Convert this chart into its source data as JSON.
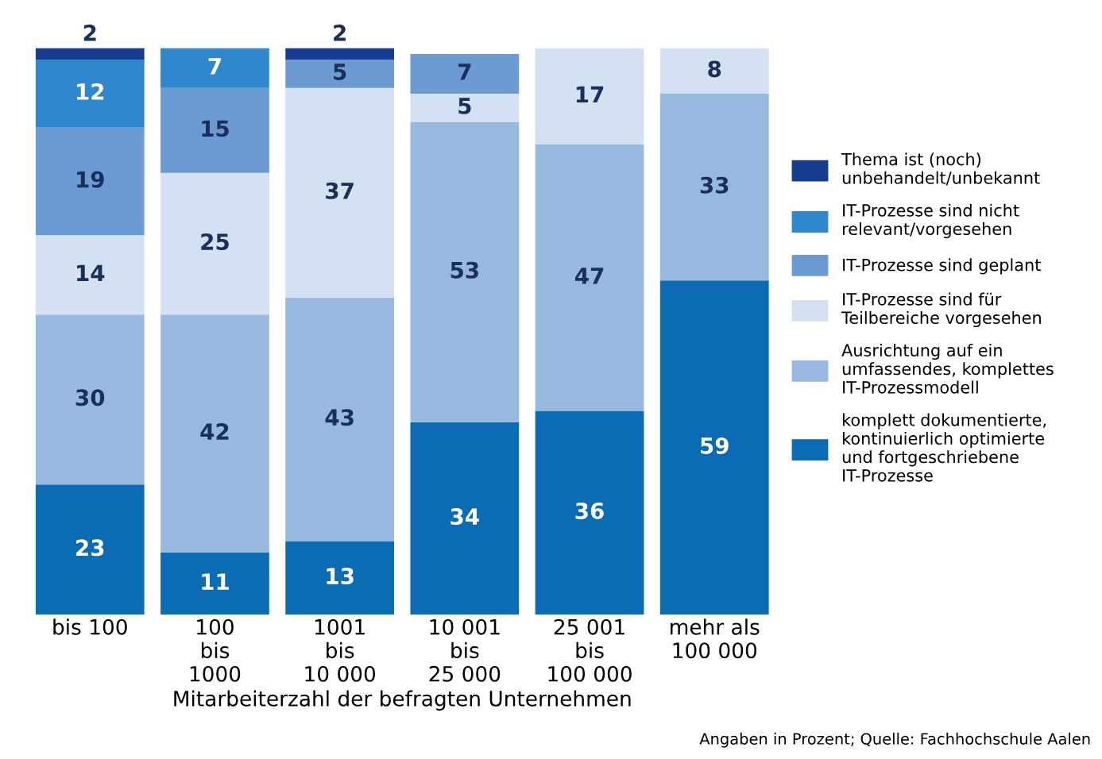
{
  "chart_data": {
    "type": "bar",
    "stacked": true,
    "data_labels": true,
    "tick_labels": "x",
    "legend": "right",
    "xlabel": "Mitarbeiterzahl der befragten Unternehmen",
    "categories": [
      "bis 100",
      "100\nbis\n1000",
      "1001\nbis\n10 000",
      "10 001\nbis\n25 000",
      "25 001\nbis\n100 000",
      "mehr als\n100 000"
    ],
    "series": [
      {
        "name": "komplett dokumentierte,\nkontinuierlich optimierte\nund fortgeschriebene\nIT-Prozesse",
        "color": "#0b6bb4",
        "values": [
          23,
          11,
          13,
          34,
          36,
          59
        ]
      },
      {
        "name": "Ausrichtung auf ein\numfassendes, komplettes\nIT-Prozessmodell",
        "color": "#97b9e0",
        "values": [
          30,
          42,
          43,
          53,
          47,
          33
        ]
      },
      {
        "name": "IT-Prozesse sind für\nTeilbereiche vorgesehen",
        "color": "#d4e1f2",
        "values": [
          14,
          25,
          37,
          5,
          17,
          8
        ]
      },
      {
        "name": "IT-Prozesse sind geplant",
        "color": "#6b9bd2",
        "values": [
          19,
          15,
          5,
          7,
          null,
          null
        ]
      },
      {
        "name": "IT-Prozesse sind nicht\nrelevant/vorgesehen",
        "color": "#2f88cc",
        "values": [
          12,
          7,
          null,
          null,
          null,
          null
        ]
      },
      {
        "name": "Thema ist (noch)\nunbehandelt/unbekannt",
        "color": "#163d8f",
        "values": [
          2,
          null,
          2,
          null,
          null,
          null
        ]
      }
    ],
    "annotations": [
      "Angaben in Prozent; Quelle: Fachhochschule Aalen"
    ]
  }
}
